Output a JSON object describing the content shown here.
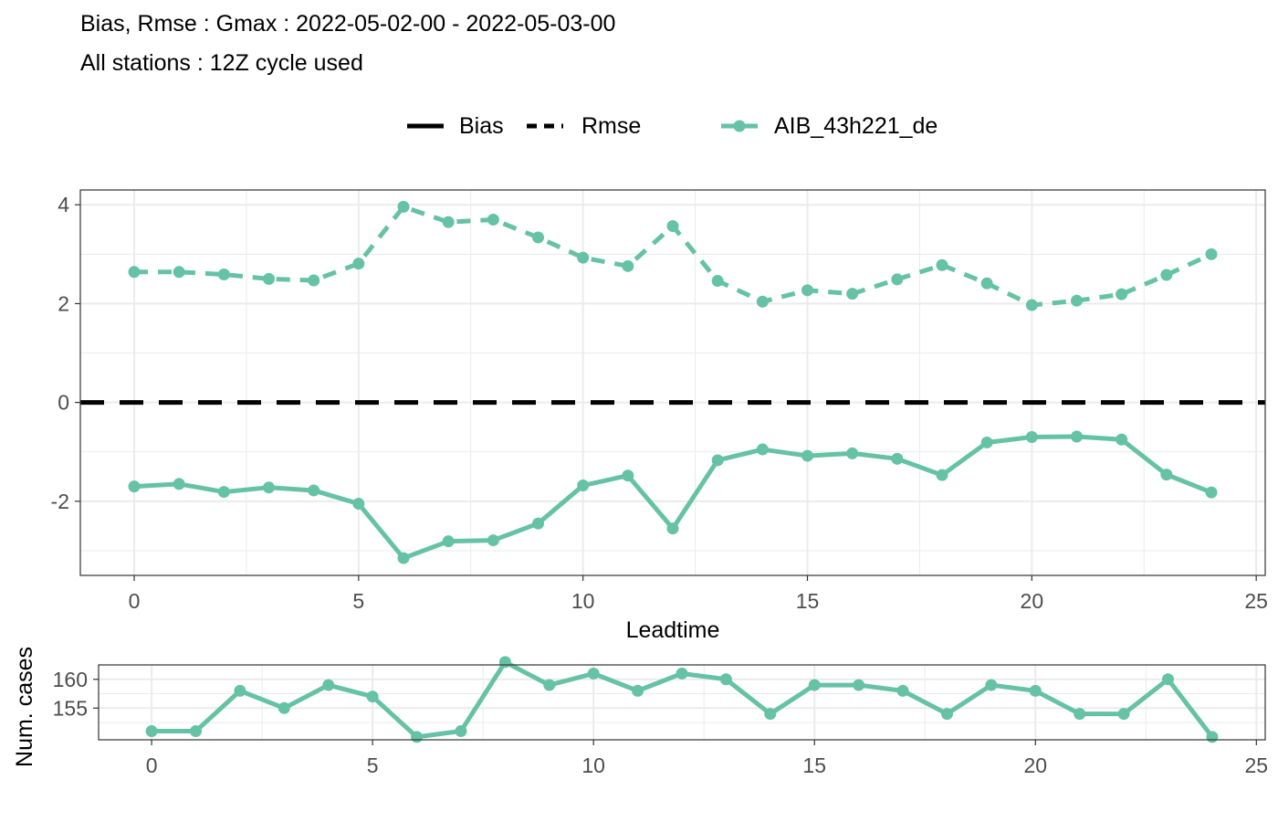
{
  "title": "Bias, Rmse : Gmax : 2022-05-02-00 - 2022-05-03-00",
  "subtitle": "All stations : 12Z cycle used",
  "legend": {
    "linetypes": [
      "Bias",
      "Rmse"
    ],
    "series": "AIB_43h221_de"
  },
  "colors": {
    "series": "#66c2a5",
    "zero_line": "#000000",
    "grid": "#ebebeb",
    "panel_border": "#333333"
  },
  "chart_data": [
    {
      "type": "line",
      "xlabel": "Leadtime",
      "ylabel": "",
      "xlim": [
        -1.2,
        25.2
      ],
      "ylim": [
        -3.5,
        4.3
      ],
      "xticks": [
        0,
        5,
        10,
        15,
        20,
        25
      ],
      "yticks": [
        -2,
        0,
        2,
        4
      ],
      "yticklabels": [
        "-2",
        "0",
        "2",
        "4"
      ],
      "grid": true,
      "legend_position": "top",
      "x": [
        0,
        1,
        2,
        3,
        4,
        5,
        6,
        7,
        8,
        9,
        10,
        11,
        12,
        13,
        14,
        15,
        16,
        17,
        18,
        19,
        20,
        21,
        22,
        23,
        24
      ],
      "series": [
        {
          "name": "Rmse",
          "linetype": "dashed",
          "values": [
            2.64,
            2.64,
            2.59,
            2.5,
            2.47,
            2.81,
            3.96,
            3.65,
            3.7,
            3.34,
            2.93,
            2.76,
            3.57,
            2.46,
            2.04,
            2.27,
            2.2,
            2.49,
            2.78,
            2.41,
            1.97,
            2.06,
            2.19,
            2.58,
            3.0
          ]
        },
        {
          "name": "Bias",
          "linetype": "solid",
          "values": [
            -1.7,
            -1.65,
            -1.81,
            -1.72,
            -1.78,
            -2.05,
            -3.15,
            -2.81,
            -2.79,
            -2.45,
            -1.68,
            -1.48,
            -2.55,
            -1.17,
            -0.95,
            -1.08,
            -1.03,
            -1.14,
            -1.47,
            -0.81,
            -0.7,
            -0.69,
            -0.75,
            -1.46,
            -1.82
          ]
        }
      ],
      "reference_lines": [
        {
          "y": 0,
          "linetype": "dashed"
        }
      ]
    },
    {
      "type": "line",
      "xlabel": "",
      "ylabel": "Num. cases",
      "xlim": [
        -1.2,
        25.2
      ],
      "ylim": [
        149.5,
        162.5
      ],
      "xticks": [
        0,
        5,
        10,
        15,
        20,
        25
      ],
      "yticks": [
        155,
        160
      ],
      "yticklabels": [
        "155",
        "160"
      ],
      "grid": true,
      "x": [
        0,
        1,
        2,
        3,
        4,
        5,
        6,
        7,
        8,
        9,
        10,
        11,
        12,
        13,
        14,
        15,
        16,
        17,
        18,
        19,
        20,
        21,
        22,
        23,
        24
      ],
      "series": [
        {
          "name": "",
          "values": [
            151,
            151,
            158,
            155,
            159,
            157,
            150,
            151,
            163,
            159,
            161,
            158,
            161,
            160,
            154,
            159,
            159,
            158,
            154,
            159,
            158,
            154,
            154,
            160,
            150
          ]
        }
      ]
    }
  ]
}
